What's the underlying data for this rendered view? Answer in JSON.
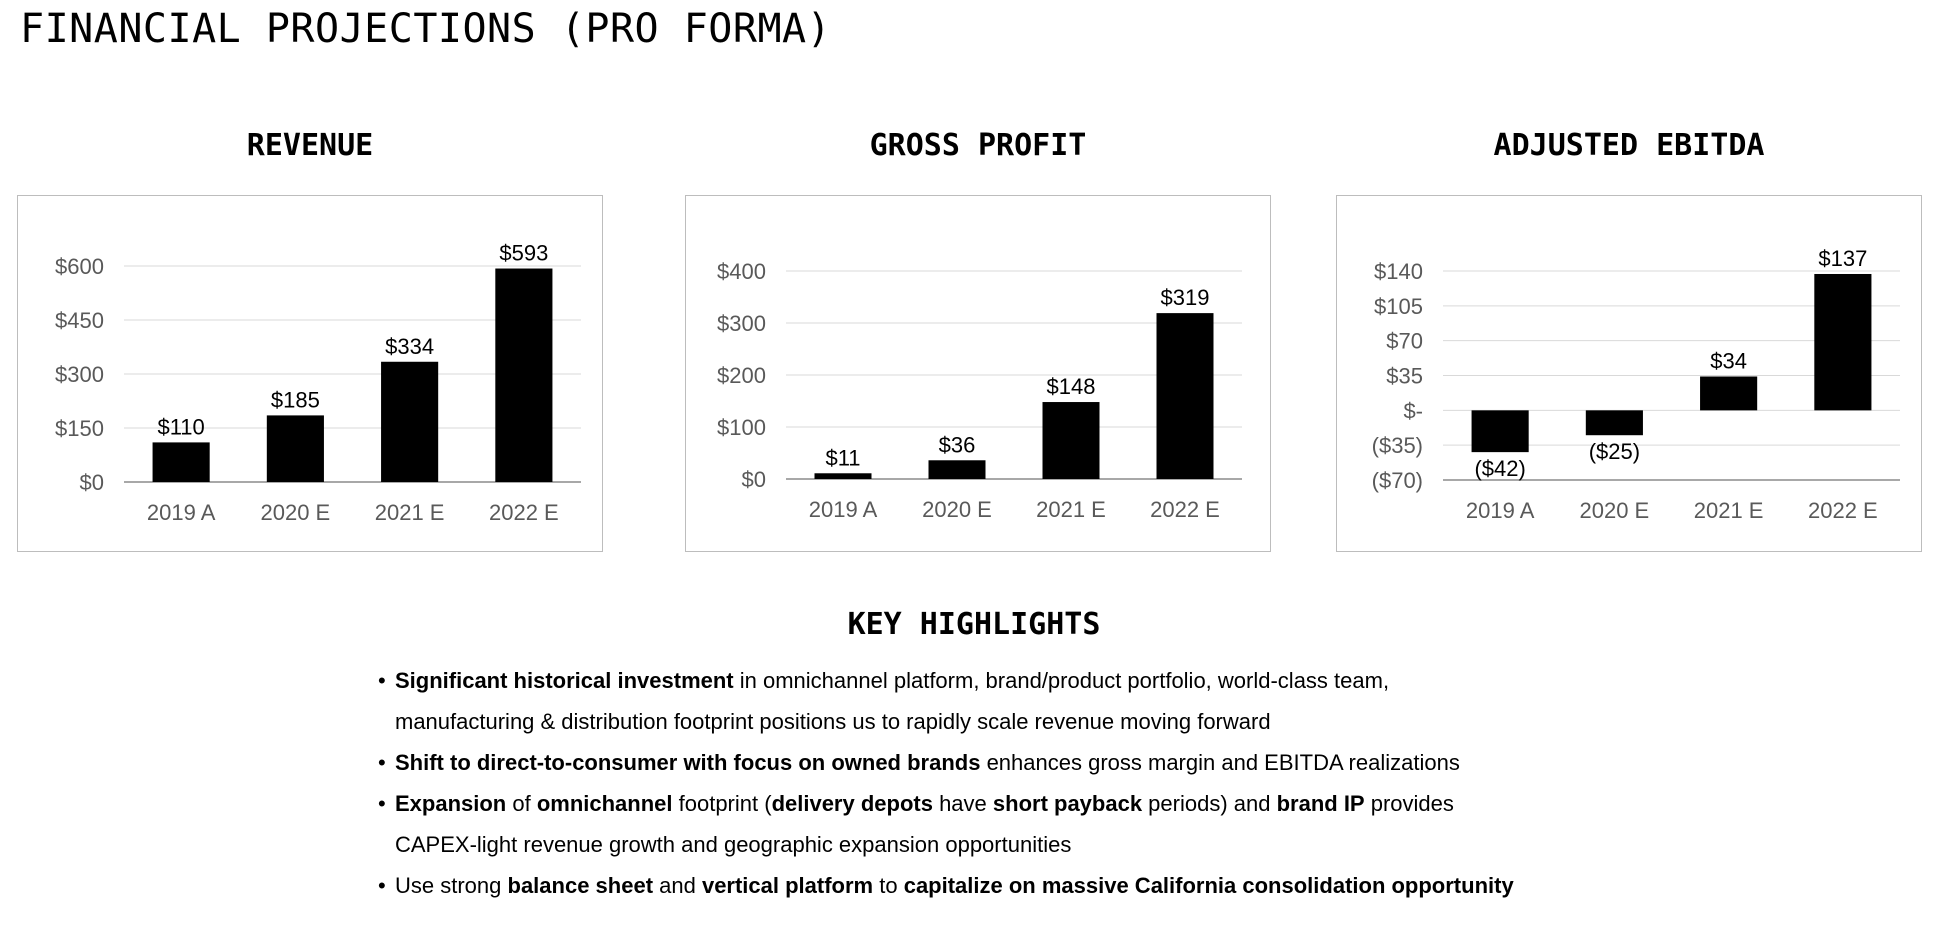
{
  "page_title": "FINANCIAL PROJECTIONS (PRO FORMA)",
  "chart_data": [
    {
      "type": "bar",
      "title": "REVENUE",
      "categories": [
        "2019 A",
        "2020 E",
        "2021 E",
        "2022 E"
      ],
      "values": [
        110,
        185,
        334,
        593
      ],
      "value_labels": [
        "$110",
        "$185",
        "$334",
        "$593"
      ],
      "yticks": [
        0,
        150,
        300,
        450,
        600
      ],
      "ytick_labels": [
        "$0",
        "$150",
        "$300",
        "$450",
        "$600"
      ],
      "ylim": [
        0,
        600
      ],
      "grid": true,
      "bar_color": "#000000"
    },
    {
      "type": "bar",
      "title": "GROSS PROFIT",
      "categories": [
        "2019 A",
        "2020 E",
        "2021 E",
        "2022 E"
      ],
      "values": [
        11,
        36,
        148,
        319
      ],
      "value_labels": [
        "$11",
        "$36",
        "$148",
        "$319"
      ],
      "yticks": [
        0,
        100,
        200,
        300,
        400
      ],
      "ytick_labels": [
        "$0",
        "$100",
        "$200",
        "$300",
        "$400"
      ],
      "ylim": [
        0,
        400
      ],
      "grid": true,
      "bar_color": "#000000"
    },
    {
      "type": "bar",
      "title": "ADJUSTED EBITDA",
      "categories": [
        "2019 A",
        "2020 E",
        "2021 E",
        "2022 E"
      ],
      "values": [
        -42,
        -25,
        34,
        137
      ],
      "value_labels": [
        "($42)",
        "($25)",
        "$34",
        "$137"
      ],
      "yticks": [
        -70,
        -35,
        0,
        35,
        70,
        105,
        140
      ],
      "ytick_labels": [
        "($70)",
        "($35)",
        "$-",
        "$35",
        "$70",
        "$105",
        "$140"
      ],
      "ylim": [
        -70,
        140
      ],
      "grid": true,
      "bar_color": "#000000"
    }
  ],
  "highlights": {
    "title": "KEY HIGHLIGHTS",
    "bullet": "•",
    "items": [
      {
        "lines": [
          [
            {
              "text": "Significant historical investment",
              "bold": true
            },
            {
              "text": " in omnichannel platform, brand/product portfolio, world-class team,",
              "bold": false
            }
          ],
          [
            {
              "text": "manufacturing & distribution footprint positions us to rapidly scale revenue moving forward",
              "bold": false
            }
          ]
        ]
      },
      {
        "lines": [
          [
            {
              "text": "Shift to direct-to-consumer with focus on owned brands",
              "bold": true
            },
            {
              "text": " enhances gross margin and EBITDA realizations",
              "bold": false
            }
          ]
        ]
      },
      {
        "lines": [
          [
            {
              "text": "Expansion",
              "bold": true
            },
            {
              "text": " of ",
              "bold": false
            },
            {
              "text": "omnichannel",
              "bold": true
            },
            {
              "text": " footprint (",
              "bold": false
            },
            {
              "text": "delivery depots",
              "bold": true
            },
            {
              "text": " have ",
              "bold": false
            },
            {
              "text": "short payback",
              "bold": true
            },
            {
              "text": " periods) and ",
              "bold": false
            },
            {
              "text": "brand IP",
              "bold": true
            },
            {
              "text": " provides",
              "bold": false
            }
          ],
          [
            {
              "text": "CAPEX-light revenue growth and geographic expansion opportunities",
              "bold": false
            }
          ]
        ]
      },
      {
        "lines": [
          [
            {
              "text": "Use strong ",
              "bold": false
            },
            {
              "text": "balance sheet",
              "bold": true
            },
            {
              "text": " and ",
              "bold": false
            },
            {
              "text": "vertical platform",
              "bold": true
            },
            {
              "text": " to ",
              "bold": false
            },
            {
              "text": "capitalize on massive California consolidation opportunity",
              "bold": true
            }
          ]
        ]
      }
    ]
  }
}
